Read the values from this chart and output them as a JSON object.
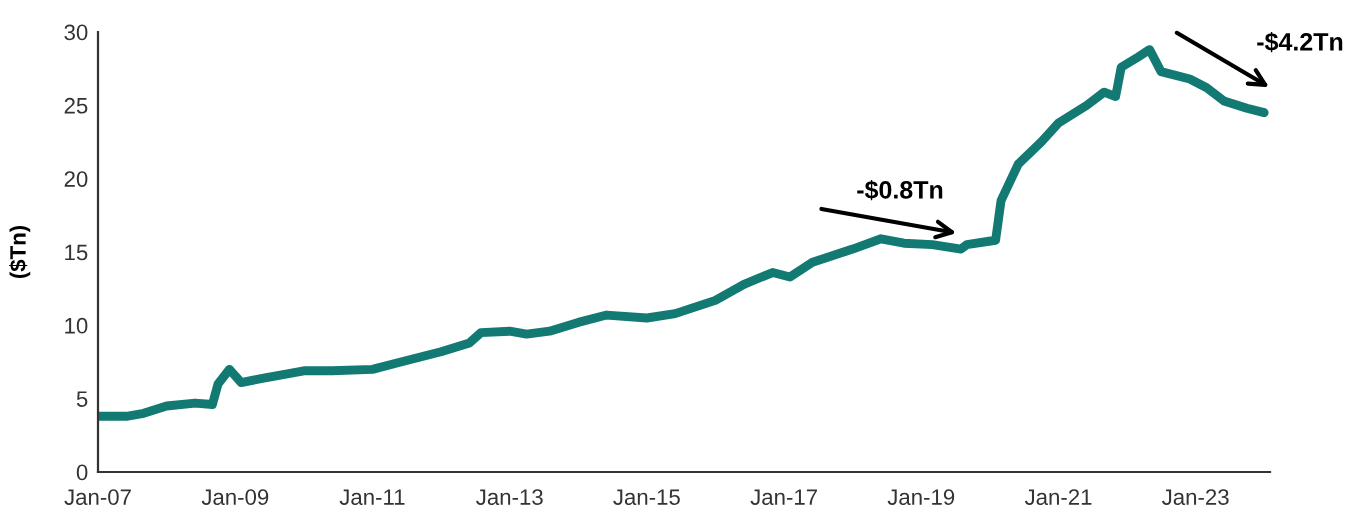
{
  "chart_data": {
    "type": "line",
    "ylabel": "($Tn)",
    "x": [
      "2007-01",
      "2007-06",
      "2007-09",
      "2008-01",
      "2008-06",
      "2008-09",
      "2008-10",
      "2008-12",
      "2009-02",
      "2009-06",
      "2010-01",
      "2010-06",
      "2011-01",
      "2011-06",
      "2012-01",
      "2012-06",
      "2012-08",
      "2013-01",
      "2013-04",
      "2013-08",
      "2014-01",
      "2014-06",
      "2015-01",
      "2015-06",
      "2016-01",
      "2016-06",
      "2016-11",
      "2017-02",
      "2017-06",
      "2018-01",
      "2018-06",
      "2018-10",
      "2019-03",
      "2019-08",
      "2019-09",
      "2020-02",
      "2020-03",
      "2020-06",
      "2020-10",
      "2021-01",
      "2021-06",
      "2021-09",
      "2021-11",
      "2021-12",
      "2022-03",
      "2022-05",
      "2022-07",
      "2022-12",
      "2023-03",
      "2023-06",
      "2023-10",
      "2024-01"
    ],
    "series": [
      {
        "color": "#127a73",
        "values": [
          3.8,
          3.8,
          4.0,
          4.5,
          4.7,
          4.6,
          6.0,
          7.0,
          6.1,
          6.4,
          6.9,
          6.9,
          7.0,
          7.5,
          8.2,
          8.8,
          9.5,
          9.6,
          9.4,
          9.6,
          10.2,
          10.7,
          10.5,
          10.8,
          11.7,
          12.8,
          13.6,
          13.3,
          14.3,
          15.2,
          15.9,
          15.6,
          15.5,
          15.2,
          15.5,
          15.8,
          18.5,
          21.0,
          22.5,
          23.8,
          25.0,
          25.9,
          25.6,
          27.6,
          28.3,
          28.8,
          27.3,
          26.8,
          26.2,
          25.3,
          24.8,
          24.5
        ]
      }
    ],
    "xlim": [
      "2007-01",
      "2024-02"
    ],
    "xticks": [
      {
        "value": "2007-01",
        "label": "Jan-07"
      },
      {
        "value": "2009-01",
        "label": "Jan-09"
      },
      {
        "value": "2011-01",
        "label": "Jan-11"
      },
      {
        "value": "2013-01",
        "label": "Jan-13"
      },
      {
        "value": "2015-01",
        "label": "Jan-15"
      },
      {
        "value": "2017-01",
        "label": "Jan-17"
      },
      {
        "value": "2019-01",
        "label": "Jan-19"
      },
      {
        "value": "2021-01",
        "label": "Jan-21"
      },
      {
        "value": "2023-01",
        "label": "Jan-23"
      }
    ],
    "ylim": [
      0,
      30
    ],
    "yticks": [
      0,
      5,
      10,
      15,
      20,
      25,
      30
    ],
    "grid": false,
    "legend": false,
    "annotations": [
      "-$0.8Tn",
      "-$4.2Tn"
    ]
  }
}
